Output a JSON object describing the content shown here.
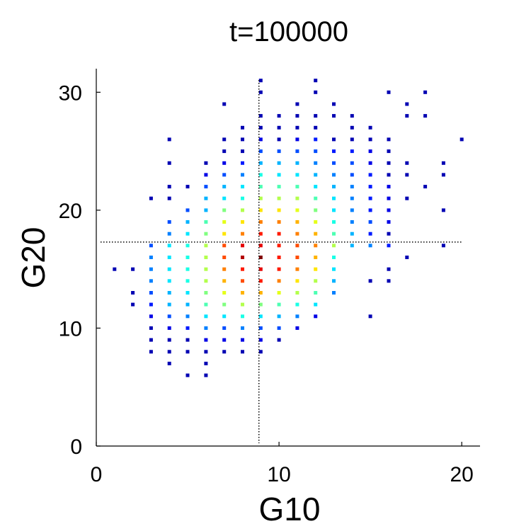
{
  "chart_data": {
    "type": "scatter",
    "title": "t=100000",
    "xlabel": "G10",
    "ylabel": "G20",
    "xlim": [
      0,
      21
    ],
    "ylim": [
      0,
      32
    ],
    "xticks": [
      0,
      10,
      20
    ],
    "yticks": [
      0,
      10,
      20,
      30
    ],
    "grid": false,
    "colormap": "jet",
    "reference_lines": {
      "vertical_x": 8.9,
      "horizontal_y": 17.3,
      "style": "dotted"
    },
    "points": [
      [
        1,
        15,
        0.05
      ],
      [
        2,
        15,
        0.05
      ],
      [
        2,
        13,
        0.05
      ],
      [
        2,
        12,
        0.05
      ],
      [
        3,
        21,
        0.05
      ],
      [
        3,
        17,
        0.2
      ],
      [
        3,
        16,
        0.25
      ],
      [
        3,
        15,
        0.25
      ],
      [
        3,
        14,
        0.25
      ],
      [
        3,
        13,
        0.2
      ],
      [
        3,
        12,
        0.15
      ],
      [
        3,
        11,
        0.1
      ],
      [
        3,
        10,
        0.05
      ],
      [
        3,
        9,
        0.05
      ],
      [
        3,
        8,
        0.05
      ],
      [
        4,
        26,
        0.05
      ],
      [
        4,
        24,
        0.05
      ],
      [
        4,
        22,
        0.05
      ],
      [
        4,
        21,
        0.05
      ],
      [
        4,
        19,
        0.2
      ],
      [
        4,
        18,
        0.25
      ],
      [
        4,
        17,
        0.35
      ],
      [
        4,
        16,
        0.35
      ],
      [
        4,
        15,
        0.35
      ],
      [
        4,
        14,
        0.35
      ],
      [
        4,
        13,
        0.3
      ],
      [
        4,
        12,
        0.3
      ],
      [
        4,
        11,
        0.2
      ],
      [
        4,
        10,
        0.1
      ],
      [
        4,
        9,
        0.05
      ],
      [
        4,
        8,
        0.05
      ],
      [
        4,
        7,
        0.05
      ],
      [
        5,
        22,
        0.05
      ],
      [
        5,
        20,
        0.2
      ],
      [
        5,
        19,
        0.3
      ],
      [
        5,
        18,
        0.35
      ],
      [
        5,
        17,
        0.4
      ],
      [
        5,
        16,
        0.4
      ],
      [
        5,
        15,
        0.4
      ],
      [
        5,
        14,
        0.4
      ],
      [
        5,
        13,
        0.35
      ],
      [
        5,
        12,
        0.3
      ],
      [
        5,
        11,
        0.25
      ],
      [
        5,
        10,
        0.15
      ],
      [
        5,
        9,
        0.05
      ],
      [
        5,
        8,
        0.05
      ],
      [
        5,
        6,
        0.05
      ],
      [
        6,
        24,
        0.05
      ],
      [
        6,
        23,
        0.1
      ],
      [
        6,
        22,
        0.2
      ],
      [
        6,
        21,
        0.3
      ],
      [
        6,
        20,
        0.3
      ],
      [
        6,
        19,
        0.45
      ],
      [
        6,
        18,
        0.5
      ],
      [
        6,
        17,
        0.55
      ],
      [
        6,
        16,
        0.55
      ],
      [
        6,
        15,
        0.55
      ],
      [
        6,
        14,
        0.55
      ],
      [
        6,
        13,
        0.5
      ],
      [
        6,
        12,
        0.45
      ],
      [
        6,
        11,
        0.35
      ],
      [
        6,
        10,
        0.25
      ],
      [
        6,
        9,
        0.1
      ],
      [
        6,
        8,
        0.05
      ],
      [
        6,
        7,
        0.05
      ],
      [
        6,
        6,
        0.05
      ],
      [
        7,
        29,
        0.05
      ],
      [
        7,
        26,
        0.05
      ],
      [
        7,
        25,
        0.05
      ],
      [
        7,
        24,
        0.1
      ],
      [
        7,
        23,
        0.2
      ],
      [
        7,
        22,
        0.3
      ],
      [
        7,
        21,
        0.35
      ],
      [
        7,
        20,
        0.5
      ],
      [
        7,
        19,
        0.6
      ],
      [
        7,
        18,
        0.65
      ],
      [
        7,
        17,
        0.8
      ],
      [
        7,
        16,
        0.8
      ],
      [
        7,
        15,
        0.75
      ],
      [
        7,
        14,
        0.7
      ],
      [
        7,
        13,
        0.6
      ],
      [
        7,
        12,
        0.5
      ],
      [
        7,
        11,
        0.35
      ],
      [
        7,
        10,
        0.2
      ],
      [
        7,
        9,
        0.1
      ],
      [
        7,
        8,
        0.05
      ],
      [
        8,
        27,
        0.05
      ],
      [
        8,
        26,
        0.05
      ],
      [
        8,
        25,
        0.05
      ],
      [
        8,
        24,
        0.15
      ],
      [
        8,
        23,
        0.25
      ],
      [
        8,
        22,
        0.35
      ],
      [
        8,
        21,
        0.4
      ],
      [
        8,
        20,
        0.55
      ],
      [
        8,
        19,
        0.65
      ],
      [
        8,
        18,
        0.75
      ],
      [
        8,
        17,
        0.9
      ],
      [
        8,
        16,
        0.95
      ],
      [
        8,
        15,
        0.85
      ],
      [
        8,
        14,
        0.8
      ],
      [
        8,
        13,
        0.7
      ],
      [
        8,
        12,
        0.55
      ],
      [
        8,
        11,
        0.4
      ],
      [
        8,
        10,
        0.25
      ],
      [
        8,
        9,
        0.1
      ],
      [
        8,
        8,
        0.05
      ],
      [
        9,
        31,
        0.05
      ],
      [
        9,
        30,
        0.05
      ],
      [
        9,
        28,
        0.05
      ],
      [
        9,
        27,
        0.05
      ],
      [
        9,
        26,
        0.1
      ],
      [
        9,
        25,
        0.2
      ],
      [
        9,
        24,
        0.3
      ],
      [
        9,
        23,
        0.4
      ],
      [
        9,
        22,
        0.45
      ],
      [
        9,
        21,
        0.55
      ],
      [
        9,
        20,
        0.65
      ],
      [
        9,
        19,
        0.75
      ],
      [
        9,
        18,
        0.85
      ],
      [
        9,
        17,
        0.9
      ],
      [
        9,
        16,
        1.0
      ],
      [
        9,
        15,
        0.9
      ],
      [
        9,
        14,
        0.85
      ],
      [
        9,
        13,
        0.7
      ],
      [
        9,
        12,
        0.5
      ],
      [
        9,
        11,
        0.35
      ],
      [
        9,
        10,
        0.2
      ],
      [
        9,
        9,
        0.1
      ],
      [
        9,
        8,
        0.05
      ],
      [
        10,
        28,
        0.05
      ],
      [
        10,
        27,
        0.05
      ],
      [
        10,
        26,
        0.05
      ],
      [
        10,
        25,
        0.2
      ],
      [
        10,
        24,
        0.3
      ],
      [
        10,
        23,
        0.35
      ],
      [
        10,
        22,
        0.45
      ],
      [
        10,
        21,
        0.55
      ],
      [
        10,
        20,
        0.65
      ],
      [
        10,
        19,
        0.75
      ],
      [
        10,
        18,
        0.85
      ],
      [
        10,
        17,
        0.85
      ],
      [
        10,
        16,
        0.85
      ],
      [
        10,
        15,
        0.85
      ],
      [
        10,
        14,
        0.75
      ],
      [
        10,
        13,
        0.6
      ],
      [
        10,
        12,
        0.45
      ],
      [
        10,
        11,
        0.3
      ],
      [
        10,
        10,
        0.2
      ],
      [
        10,
        9,
        0.05
      ],
      [
        11,
        29,
        0.05
      ],
      [
        11,
        28,
        0.05
      ],
      [
        11,
        27,
        0.05
      ],
      [
        11,
        26,
        0.1
      ],
      [
        11,
        25,
        0.2
      ],
      [
        11,
        24,
        0.3
      ],
      [
        11,
        23,
        0.35
      ],
      [
        11,
        22,
        0.45
      ],
      [
        11,
        21,
        0.55
      ],
      [
        11,
        20,
        0.6
      ],
      [
        11,
        19,
        0.7
      ],
      [
        11,
        18,
        0.75
      ],
      [
        11,
        17,
        0.8
      ],
      [
        11,
        16,
        0.8
      ],
      [
        11,
        15,
        0.75
      ],
      [
        11,
        14,
        0.65
      ],
      [
        11,
        13,
        0.55
      ],
      [
        11,
        12,
        0.4
      ],
      [
        11,
        11,
        0.25
      ],
      [
        11,
        10,
        0.1
      ],
      [
        12,
        31,
        0.05
      ],
      [
        12,
        30,
        0.05
      ],
      [
        12,
        28,
        0.05
      ],
      [
        12,
        27,
        0.05
      ],
      [
        12,
        26,
        0.15
      ],
      [
        12,
        25,
        0.2
      ],
      [
        12,
        24,
        0.25
      ],
      [
        12,
        23,
        0.3
      ],
      [
        12,
        22,
        0.35
      ],
      [
        12,
        21,
        0.45
      ],
      [
        12,
        20,
        0.5
      ],
      [
        12,
        19,
        0.6
      ],
      [
        12,
        18,
        0.7
      ],
      [
        12,
        17,
        0.75
      ],
      [
        12,
        16,
        0.7
      ],
      [
        12,
        15,
        0.65
      ],
      [
        12,
        14,
        0.55
      ],
      [
        12,
        13,
        0.45
      ],
      [
        12,
        12,
        0.35
      ],
      [
        12,
        11,
        0.1
      ],
      [
        13,
        29,
        0.05
      ],
      [
        13,
        28,
        0.05
      ],
      [
        13,
        26,
        0.05
      ],
      [
        13,
        25,
        0.15
      ],
      [
        13,
        24,
        0.2
      ],
      [
        13,
        23,
        0.25
      ],
      [
        13,
        22,
        0.3
      ],
      [
        13,
        21,
        0.35
      ],
      [
        13,
        20,
        0.35
      ],
      [
        13,
        19,
        0.4
      ],
      [
        13,
        18,
        0.45
      ],
      [
        13,
        17,
        0.55
      ],
      [
        13,
        16,
        0.4
      ],
      [
        13,
        15,
        0.35
      ],
      [
        13,
        14,
        0.3
      ],
      [
        13,
        13,
        0.25
      ],
      [
        14,
        28,
        0.05
      ],
      [
        14,
        27,
        0.05
      ],
      [
        14,
        26,
        0.05
      ],
      [
        14,
        25,
        0.15
      ],
      [
        14,
        24,
        0.2
      ],
      [
        14,
        23,
        0.2
      ],
      [
        14,
        22,
        0.25
      ],
      [
        14,
        21,
        0.25
      ],
      [
        14,
        20,
        0.25
      ],
      [
        14,
        19,
        0.25
      ],
      [
        14,
        18,
        0.3
      ],
      [
        14,
        17,
        0.3
      ],
      [
        15,
        27,
        0.05
      ],
      [
        15,
        26,
        0.05
      ],
      [
        15,
        25,
        0.1
      ],
      [
        15,
        24,
        0.1
      ],
      [
        15,
        23,
        0.15
      ],
      [
        15,
        22,
        0.15
      ],
      [
        15,
        21,
        0.15
      ],
      [
        15,
        20,
        0.15
      ],
      [
        15,
        19,
        0.2
      ],
      [
        15,
        18,
        0.15
      ],
      [
        15,
        17,
        0.25
      ],
      [
        15,
        14,
        0.05
      ],
      [
        15,
        11,
        0.05
      ],
      [
        16,
        30,
        0.05
      ],
      [
        16,
        26,
        0.05
      ],
      [
        16,
        25,
        0.05
      ],
      [
        16,
        24,
        0.05
      ],
      [
        16,
        23,
        0.05
      ],
      [
        16,
        22,
        0.1
      ],
      [
        16,
        21,
        0.1
      ],
      [
        16,
        20,
        0.1
      ],
      [
        16,
        19,
        0.1
      ],
      [
        16,
        18,
        0.05
      ],
      [
        16,
        17,
        0.15
      ],
      [
        16,
        15,
        0.05
      ],
      [
        16,
        14,
        0.05
      ],
      [
        17,
        29,
        0.05
      ],
      [
        17,
        28,
        0.05
      ],
      [
        17,
        24,
        0.05
      ],
      [
        17,
        23,
        0.05
      ],
      [
        17,
        21,
        0.05
      ],
      [
        17,
        16,
        0.05
      ],
      [
        18,
        30,
        0.05
      ],
      [
        18,
        28,
        0.05
      ],
      [
        18,
        22,
        0.05
      ],
      [
        19,
        24,
        0.05
      ],
      [
        19,
        23,
        0.05
      ],
      [
        19,
        20,
        0.05
      ],
      [
        19,
        17,
        0.05
      ],
      [
        20,
        26,
        0.05
      ]
    ]
  }
}
